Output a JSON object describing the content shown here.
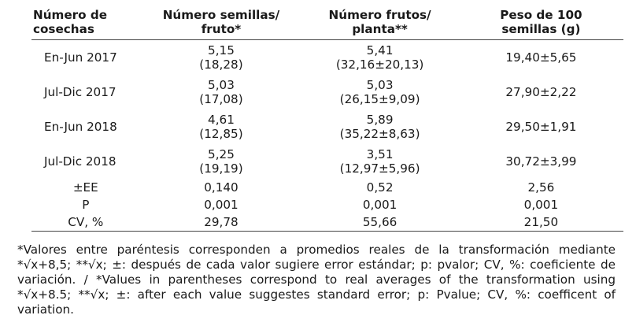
{
  "table": {
    "headers": [
      [
        "Número de",
        "cosechas"
      ],
      [
        "Número semillas/",
        "fruto*"
      ],
      [
        "Número frutos/",
        "planta**"
      ],
      [
        "Peso de 100",
        "semillas (g)"
      ]
    ],
    "rows": [
      {
        "label": "En-Jun 2017",
        "seeds": [
          "5,15",
          "(18,28)"
        ],
        "fruits": [
          "5,41",
          "(32,16±20,13)"
        ],
        "weight": "19,40±5,65"
      },
      {
        "label": "Jul-Dic 2017",
        "seeds": [
          "5,03",
          "(17,08)"
        ],
        "fruits": [
          "5,03",
          "(26,15±9,09)"
        ],
        "weight": "27,90±2,22"
      },
      {
        "label": "En-Jun 2018",
        "seeds": [
          "4,61",
          "(12,85)"
        ],
        "fruits": [
          "5,89",
          "(35,22±8,63)"
        ],
        "weight": "29,50±1,91"
      },
      {
        "label": "Jul-Dic 2018",
        "seeds": [
          "5,25",
          "(19,19)"
        ],
        "fruits": [
          "3,51",
          "(12,97±5,96)"
        ],
        "weight": "30,72±3,99"
      }
    ],
    "stats": [
      {
        "label": "±EE",
        "seeds": "0,140",
        "fruits": "0,52",
        "weight": "2,56"
      },
      {
        "label": "P",
        "seeds": "0,001",
        "fruits": "0,001",
        "weight": "0,001"
      },
      {
        "label": "CV, %",
        "seeds": "29,78",
        "fruits": "55,66",
        "weight": "21,50"
      }
    ]
  },
  "footnote": "*Valores entre paréntesis corresponden a promedios reales de la transformación mediante *√x+8,5; **√x; ±: después de cada valor sugiere error estándar; p: pvalor; CV, %: coeficiente de variación. / *Values in parentheses correspond to real averages of the transformation using *√x+8.5; **√x; ±: after each value suggestes standard error; p: Pvalue; CV, %: coefficent of variation."
}
